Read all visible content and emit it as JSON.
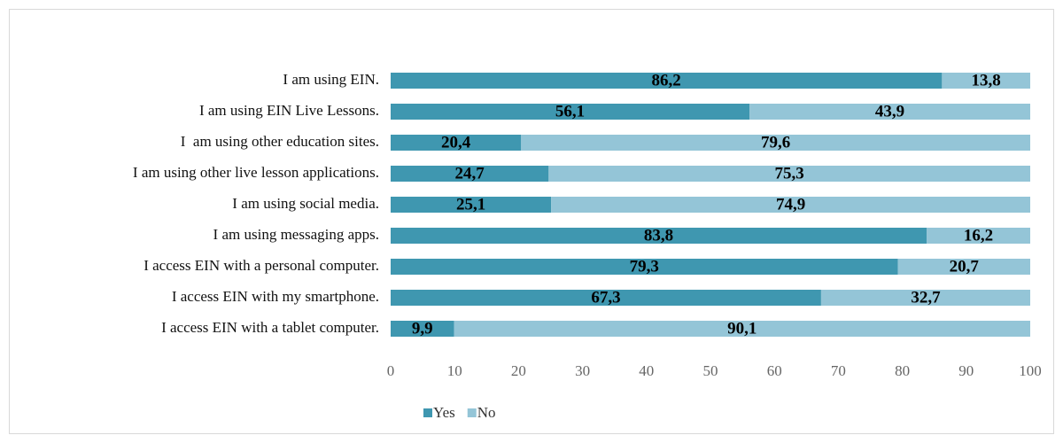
{
  "chart_data": {
    "type": "stacked_barh",
    "categories": [
      "I am using EIN.",
      "I am using EIN Live Lessons.",
      "I  am using other education sites.",
      "I am using other live lesson applications.",
      "I am using social media.",
      "I am using messaging apps.",
      "I access EIN with a personal computer.",
      "I access EIN with my smartphone.",
      "I access EIN with a tablet computer."
    ],
    "series": [
      {
        "name": "Yes",
        "color": "#3f97b0",
        "values": [
          86.2,
          56.1,
          20.4,
          24.7,
          25.1,
          83.8,
          79.3,
          67.3,
          9.9
        ],
        "value_labels": [
          "86,2",
          "56,1",
          "20,4",
          "24,7",
          "25,1",
          "83,8",
          "79,3",
          "67,3",
          "9,9"
        ]
      },
      {
        "name": "No",
        "color": "#94c5d7",
        "values": [
          13.8,
          43.9,
          79.6,
          75.3,
          74.9,
          16.2,
          20.7,
          32.7,
          90.1
        ],
        "value_labels": [
          "13,8",
          "43,9",
          "79,6",
          "75,3",
          "74,9",
          "16,2",
          "20,7",
          "32,7",
          "90,1"
        ]
      }
    ],
    "xlim": [
      0,
      100
    ],
    "xticks": [
      0,
      10,
      20,
      30,
      40,
      50,
      60,
      70,
      80,
      90,
      100
    ],
    "grid": false,
    "legend": "bottom"
  }
}
